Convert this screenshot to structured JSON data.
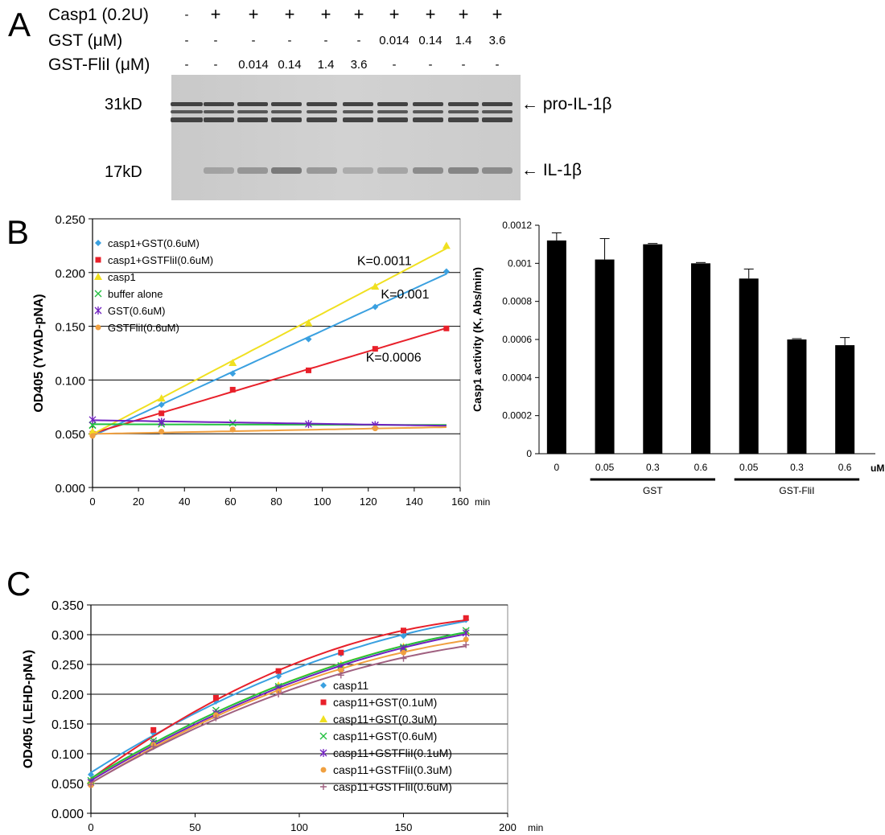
{
  "panel_a": {
    "label": "A",
    "rows": [
      {
        "label": "Casp1 (0.2U)",
        "values": [
          "-",
          "+",
          "+",
          "+",
          "+",
          "+",
          "+",
          "+",
          "+",
          "+"
        ]
      },
      {
        "label": "GST (μM)",
        "values": [
          "-",
          "-",
          "-",
          "-",
          "-",
          "-",
          "0.014",
          "0.14",
          "1.4",
          "3.6"
        ]
      },
      {
        "label": "GST-FliI (μM)",
        "values": [
          "-",
          "-",
          "0.014",
          "0.14",
          "1.4",
          "3.6",
          "-",
          "-",
          "-",
          "-"
        ]
      }
    ],
    "mw_markers": [
      "31kD",
      "17kD"
    ],
    "band_labels": [
      "← pro-IL-1β",
      "← IL-1β"
    ]
  },
  "chart_data": [
    {
      "id": "panel-b-kinetics",
      "panel_label": "B",
      "type": "scatter",
      "title": "",
      "xlabel": "",
      "x_unit": "min",
      "ylabel": "OD405 (YVAD-pNA)",
      "xlim": [
        0,
        160
      ],
      "ylim": [
        0.0,
        0.25
      ],
      "x_ticks": [
        "0",
        "20",
        "40",
        "60",
        "80",
        "100",
        "120",
        "140",
        "160"
      ],
      "y_ticks": [
        "0.000",
        "0.050",
        "0.100",
        "0.150",
        "0.200",
        "0.250"
      ],
      "grid": "horizontal",
      "legend_position": "top-left",
      "x": [
        0,
        30,
        61,
        94,
        123,
        154
      ],
      "series": [
        {
          "name": "casp1+GST(0.6uM)",
          "color": "#3aa0e0",
          "marker": "diamond",
          "values": [
            0.05,
            0.077,
            0.106,
            0.138,
            0.168,
            0.201
          ],
          "fit": "linear"
        },
        {
          "name": "casp1+GSTFliI(0.6uM)",
          "color": "#e8202a",
          "marker": "square",
          "values": [
            0.05,
            0.069,
            0.091,
            0.109,
            0.129,
            0.148
          ],
          "fit": "linear"
        },
        {
          "name": "casp1",
          "color": "#f0e020",
          "marker": "triangle",
          "values": [
            0.052,
            0.083,
            0.116,
            0.153,
            0.187,
            0.225
          ],
          "fit": "linear"
        },
        {
          "name": "buffer alone",
          "color": "#22c040",
          "marker": "x",
          "values": [
            0.058,
            0.059,
            0.06,
            0.058,
            0.058,
            0.058
          ],
          "fit": "linear"
        },
        {
          "name": "GST(0.6uM)",
          "color": "#7020c0",
          "marker": "star",
          "values": [
            0.063,
            0.061,
            0.061,
            0.059,
            0.058,
            0.058
          ],
          "fit": "linear"
        },
        {
          "name": "GSTFliI(0.6uM)",
          "color": "#f0a040",
          "marker": "circle",
          "values": [
            0.048,
            0.052,
            0.054,
            0.054,
            0.055,
            0.055
          ],
          "fit": "linear"
        }
      ],
      "annotations": [
        {
          "text": "K=0.0011",
          "x": 127,
          "y": 0.207
        },
        {
          "text": "K=0.001",
          "x": 136,
          "y": 0.176
        },
        {
          "text": "K=0.0006",
          "x": 131,
          "y": 0.117
        }
      ]
    },
    {
      "id": "panel-b-activity",
      "type": "bar",
      "title": "",
      "ylabel": "Casp1 activity (K, Abs/min)",
      "x_unit": "uM",
      "categories": [
        "0",
        "0.05",
        "0.3",
        "0.6",
        "0.05",
        "0.3",
        "0.6"
      ],
      "values": [
        0.00112,
        0.00102,
        0.0011,
        0.001,
        0.00092,
        0.0006,
        0.00057
      ],
      "errors": [
        4e-05,
        0.00011,
        0.0,
        0.0,
        5e-05,
        0.0,
        4e-05
      ],
      "groups": [
        {
          "label": "GST",
          "categories": [
            1,
            2,
            3
          ]
        },
        {
          "label": "GST-FliI",
          "categories": [
            4,
            5,
            6
          ]
        }
      ],
      "ylim": [
        0,
        0.0012
      ],
      "y_ticks": [
        "0",
        "0.0002",
        "0.0004",
        "0.0006",
        "0.0008",
        "0.001",
        "0.0012"
      ],
      "grid": "none",
      "color": "#000000"
    },
    {
      "id": "panel-c-kinetics",
      "panel_label": "C",
      "type": "scatter",
      "title": "",
      "xlabel": "",
      "x_unit": "min",
      "ylabel": "OD405 (LEHD-pNA)",
      "xlim": [
        0,
        200
      ],
      "ylim": [
        0.0,
        0.35
      ],
      "x_ticks": [
        "0",
        "50",
        "100",
        "150",
        "200"
      ],
      "y_ticks": [
        "0.000",
        "0.050",
        "0.100",
        "0.150",
        "0.200",
        "0.250",
        "0.300",
        "0.350"
      ],
      "grid": "horizontal",
      "legend_position": "bottom-right",
      "x": [
        0,
        30,
        60,
        90,
        120,
        150,
        180
      ],
      "series": [
        {
          "name": "casp11",
          "color": "#3aa0e0",
          "marker": "diamond",
          "values": [
            0.065,
            0.135,
            0.188,
            0.23,
            0.268,
            0.298,
            0.325
          ],
          "fit": "quadratic"
        },
        {
          "name": "casp11+GST(0.1uM)",
          "color": "#e8202a",
          "marker": "square",
          "values": [
            0.05,
            0.14,
            0.194,
            0.239,
            0.27,
            0.307,
            0.328
          ],
          "fit": "quadratic"
        },
        {
          "name": "casp11+GST(0.3uM)",
          "color": "#f0e020",
          "marker": "triangle",
          "values": [
            0.055,
            0.12,
            0.17,
            0.215,
            0.25,
            0.28,
            0.305
          ],
          "fit": "quadratic"
        },
        {
          "name": "casp11+GST(0.6uM)",
          "color": "#22c040",
          "marker": "x",
          "values": [
            0.055,
            0.122,
            0.173,
            0.213,
            0.248,
            0.279,
            0.307
          ],
          "fit": "quadratic"
        },
        {
          "name": "casp11+GSTFliI(0.1uM)",
          "color": "#7020c0",
          "marker": "star",
          "values": [
            0.052,
            0.118,
            0.168,
            0.21,
            0.245,
            0.277,
            0.303
          ],
          "fit": "quadratic"
        },
        {
          "name": "casp11+GSTFliI(0.3uM)",
          "color": "#f0a040",
          "marker": "circle",
          "values": [
            0.047,
            0.115,
            0.165,
            0.205,
            0.24,
            0.27,
            0.292
          ],
          "fit": "quadratic"
        },
        {
          "name": "casp11+GSTFliI(0.6uM)",
          "color": "#a06080",
          "marker": "plus",
          "values": [
            0.048,
            0.112,
            0.16,
            0.2,
            0.232,
            0.26,
            0.283
          ],
          "fit": "quadratic"
        }
      ]
    }
  ]
}
